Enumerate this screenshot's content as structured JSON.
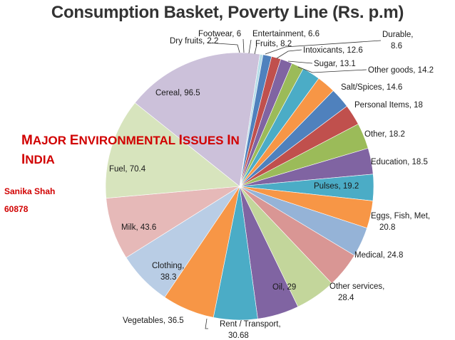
{
  "chart_data": {
    "type": "pie",
    "title": "Consumption Basket, Poverty Line (Rs. p.m)",
    "slices": [
      {
        "name": "Durable,",
        "value": 8.6,
        "label": "Durable,\n8.6",
        "color": "#9bbb59"
      },
      {
        "name": "Intoxicants",
        "value": 12.6,
        "label": "Intoxicants, 12.6",
        "color": "#4bacc6"
      },
      {
        "name": "Sugar",
        "value": 13.1,
        "label": "Sugar, 13.1",
        "color": "#f79646"
      },
      {
        "name": "Other goods",
        "value": 14.2,
        "label": "Other goods, 14.2",
        "color": "#4f81bd"
      },
      {
        "name": "Salt/Spices",
        "value": 14.6,
        "label": "Salt/Spices, 14.6",
        "color": "#c0504d"
      },
      {
        "name": "Personal Items",
        "value": 18,
        "label": "Personal Items,  18",
        "color": "#9bbb59"
      },
      {
        "name": "Other",
        "value": 18.2,
        "label": "Other, 18.2",
        "color": "#8064a2"
      },
      {
        "name": "Education",
        "value": 18.5,
        "label": "Education, 18.5",
        "color": "#4bacc6"
      },
      {
        "name": "Pulses",
        "value": 19.2,
        "label": "Pulses, 19.2",
        "color": "#f79646"
      },
      {
        "name": "Eggs, Fish, Met,",
        "value": 20.8,
        "label": "Eggs, Fish, Met,\n20.8",
        "color": "#95b3d7"
      },
      {
        "name": "Medical",
        "value": 24.8,
        "label": "Medical, 24.8",
        "color": "#d99694"
      },
      {
        "name": "Other services,",
        "value": 28.4,
        "label": "Other services,\n28.4",
        "color": "#c3d69b"
      },
      {
        "name": "Oil",
        "value": 29,
        "label": "Oil, 29",
        "color": "#8064a2"
      },
      {
        "name": "Rent / Transport,",
        "value": 30.68,
        "label": "Rent / Transport,\n30.68",
        "color": "#4bacc6"
      },
      {
        "name": "Vegetables",
        "value": 36.5,
        "label": "Vegetables, 36.5",
        "color": "#f79646"
      },
      {
        "name": "Clothing,",
        "value": 38.3,
        "label": "Clothing,\n38.3",
        "color": "#b9cde5"
      },
      {
        "name": "Milk",
        "value": 43.6,
        "label": "Milk, 43.6",
        "color": "#e6b9b8"
      },
      {
        "name": "Fuel",
        "value": 70.4,
        "label": "Fuel, 70.4",
        "color": "#d7e4bd"
      },
      {
        "name": "Cereal",
        "value": 96.5,
        "label": "Cereal, 96.5",
        "color": "#ccc1da"
      },
      {
        "name": "Dry fruits",
        "value": 2.2,
        "label": "Dry fruits,  2.2",
        "color": "#b7dee8"
      },
      {
        "name": "Footwear",
        "value": 6,
        "label": "Footwear, 6",
        "color": "#4f81bd"
      },
      {
        "name": "Entertainment",
        "value": 6.6,
        "label": "Entertainment, 6.6",
        "color": "#c0504d"
      },
      {
        "name": "Fruits",
        "value": 8.2,
        "label": "Fruits, 8.2",
        "color": "#8064a2"
      }
    ],
    "legend": "none",
    "data_labels": "outside with leader lines"
  },
  "overlay": {
    "title_line1_parts": [
      "M",
      "AJOR ",
      "E",
      "NVIRONMENTAL ",
      "I",
      "SSUES ",
      "I",
      "N"
    ],
    "title_line2_parts": [
      "I",
      "NDIA"
    ],
    "author_name": "Sanika Shah",
    "author_id": "60878",
    "text_color": "#d10000"
  }
}
